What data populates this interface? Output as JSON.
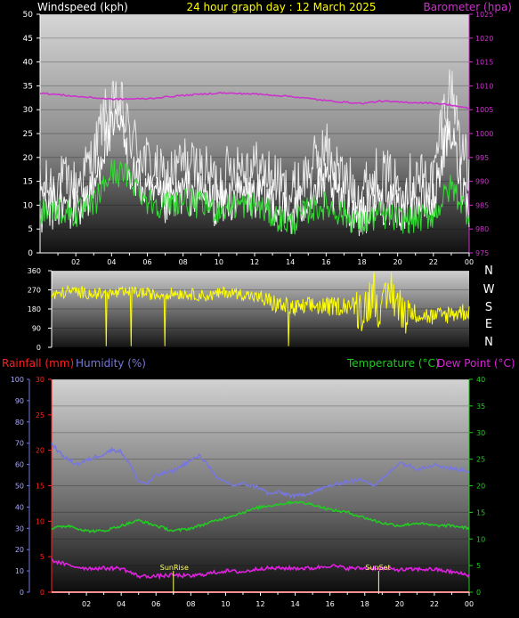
{
  "colors": {
    "wind_speed": "#ffffff",
    "wind_avg": "#33dd33",
    "barometer": "#cc33cc",
    "wind_dir": "#ffff00",
    "humidity": "#7777dd",
    "temperature": "#22cc22",
    "dew_point": "#dd22dd",
    "rainfall": "#ff2222",
    "title": "#ffff00",
    "sun_marker": "#ffff66",
    "axis_text": "#ffffff"
  },
  "header": {
    "left": "Windspeed (kph)",
    "center": "24 hour graph day : 12 March 2025",
    "right": "Barometer (hpa)"
  },
  "bottom_header": {
    "rainfall": "Rainfall (mm)",
    "humidity": "Humidity (%)",
    "temperature": "Temperature (°C)",
    "dew_point": "Dew Point (°C)"
  },
  "compass": [
    "N",
    "W",
    "S",
    "E",
    "N"
  ],
  "markers": {
    "sunrise": "SunRise",
    "sunset": "SunSet"
  },
  "chart_data": [
    {
      "type": "line",
      "title": "24 hour graph day : 12 March 2025",
      "x_tick_labels": [
        "02",
        "04",
        "06",
        "08",
        "10",
        "12",
        "14",
        "16",
        "18",
        "20",
        "22",
        "00"
      ],
      "y_left": {
        "label": "Windspeed (kph)",
        "range": [
          0,
          50
        ],
        "ticks": [
          0,
          5,
          10,
          15,
          20,
          25,
          30,
          35,
          40,
          45,
          50
        ]
      },
      "y_right": {
        "label": "Barometer (hpa)",
        "range": [
          975,
          1025
        ],
        "ticks": [
          975,
          980,
          985,
          990,
          995,
          1000,
          1005,
          1010,
          1015,
          1020,
          1025
        ]
      },
      "series": [
        {
          "name": "Windspeed",
          "axis": "left",
          "hours": [
            0,
            1,
            2,
            3,
            3.5,
            4,
            4.5,
            5,
            6,
            7,
            8,
            9,
            10,
            11,
            12,
            13,
            14,
            15,
            16,
            17,
            18,
            19,
            20,
            21,
            22,
            22.5,
            23,
            23.5,
            24
          ],
          "values": [
            8,
            10,
            9,
            13,
            22,
            25,
            27,
            18,
            12,
            10,
            13,
            12,
            10,
            12,
            12,
            11,
            7,
            12,
            14,
            10,
            8,
            11,
            9,
            11,
            10,
            21,
            25,
            16,
            10
          ]
        },
        {
          "name": "Wind gust",
          "axis": "left",
          "hours": [
            0,
            1,
            2,
            3,
            3.5,
            4,
            4.5,
            5,
            6,
            7,
            8,
            9,
            10,
            11,
            12,
            13,
            14,
            15,
            16,
            17,
            18,
            19,
            20,
            21,
            22,
            22.5,
            23,
            23.5,
            24
          ],
          "values": [
            13,
            15,
            14,
            20,
            28,
            30,
            31,
            25,
            19,
            15,
            19,
            17,
            15,
            19,
            18,
            16,
            12,
            17,
            22,
            15,
            13,
            17,
            14,
            16,
            15,
            29,
            35,
            25,
            15
          ]
        },
        {
          "name": "Wind average",
          "axis": "left",
          "hours": [
            0,
            1,
            2,
            3,
            4,
            5,
            6,
            7,
            8,
            9,
            10,
            11,
            12,
            13,
            14,
            15,
            16,
            17,
            18,
            19,
            20,
            21,
            22,
            23,
            24
          ],
          "values": [
            9,
            9,
            8,
            10,
            17,
            16,
            11,
            10,
            11,
            10,
            9,
            10,
            10,
            8,
            6,
            9,
            10,
            8,
            6,
            8,
            7,
            7,
            8,
            14,
            8
          ]
        },
        {
          "name": "Barometer",
          "axis": "right",
          "hours": [
            0,
            2,
            4,
            6,
            8,
            10,
            12,
            14,
            16,
            18,
            19,
            20,
            22,
            23,
            24
          ],
          "values": [
            1008.5,
            1007.8,
            1007.2,
            1007.3,
            1008.0,
            1008.5,
            1008.3,
            1007.8,
            1006.9,
            1006.3,
            1006.8,
            1006.6,
            1006.4,
            1006.0,
            1005.2
          ]
        }
      ]
    },
    {
      "type": "line",
      "title": "",
      "x_tick_labels": [],
      "y": {
        "label": "",
        "range": [
          0,
          360
        ],
        "ticks": [
          0,
          90,
          180,
          270,
          360
        ]
      },
      "series": [
        {
          "name": "Wind direction",
          "hours": [
            0,
            1,
            2,
            3,
            4,
            5,
            6,
            7,
            8,
            9,
            10,
            11,
            12,
            13,
            14,
            15,
            16,
            17,
            18,
            18.5,
            19,
            19.5,
            20,
            21,
            22,
            23,
            24
          ],
          "values": [
            240,
            265,
            255,
            250,
            255,
            260,
            245,
            255,
            250,
            240,
            260,
            250,
            230,
            200,
            180,
            195,
            190,
            200,
            180,
            270,
            150,
            280,
            180,
            160,
            140,
            160,
            170
          ]
        }
      ]
    },
    {
      "type": "line",
      "title": "",
      "x_tick_labels": [
        "02",
        "04",
        "06",
        "08",
        "10",
        "12",
        "14",
        "16",
        "18",
        "20",
        "22",
        "00"
      ],
      "y_left_outer": {
        "label": "Humidity (%)",
        "range": [
          0,
          100
        ],
        "ticks": [
          0,
          10,
          20,
          30,
          40,
          50,
          60,
          70,
          80,
          90,
          100
        ]
      },
      "y_left_inner": {
        "label": "Rainfall (mm)",
        "range": [
          0,
          30
        ],
        "ticks": [
          0,
          5,
          10,
          15,
          20,
          25,
          30
        ]
      },
      "y_right": {
        "label": "Temperature (°C)",
        "range": [
          0,
          40
        ],
        "ticks": [
          0,
          5,
          10,
          15,
          20,
          25,
          30,
          35,
          40
        ]
      },
      "series": [
        {
          "name": "Humidity",
          "axis": "left_outer",
          "hours": [
            0,
            0.5,
            1,
            1.5,
            2,
            3,
            3.5,
            4,
            4.5,
            5,
            5.5,
            6,
            7,
            8,
            8.5,
            9,
            9.5,
            10,
            10.5,
            11,
            12,
            12.5,
            13,
            14,
            15,
            16,
            17,
            18,
            18.5,
            19,
            20,
            21,
            22,
            23,
            24
          ],
          "values": [
            70,
            65,
            62,
            60,
            62,
            65,
            67,
            66,
            60,
            52,
            51,
            55,
            57,
            62,
            64,
            60,
            53,
            52,
            50,
            51,
            49,
            46,
            47,
            45,
            47,
            50,
            52,
            53,
            50,
            53,
            61,
            58,
            60,
            58,
            57
          ]
        },
        {
          "name": "Temperature",
          "axis": "right",
          "hours": [
            0,
            1,
            2,
            3,
            4,
            5,
            6,
            7,
            8,
            9,
            10,
            11,
            12,
            13,
            14,
            15,
            16,
            17,
            18,
            19,
            20,
            21,
            22,
            23,
            24
          ],
          "values": [
            12,
            12.5,
            11.5,
            11.5,
            12.5,
            13.5,
            12.5,
            11.5,
            12,
            13,
            14,
            15,
            16,
            16.5,
            17,
            16.5,
            15.5,
            15,
            14,
            13,
            12.5,
            13,
            12.5,
            12.5,
            12
          ]
        },
        {
          "name": "Dew Point",
          "axis": "right",
          "hours": [
            0,
            1,
            2,
            3,
            4,
            5,
            6,
            7,
            8,
            9,
            10,
            11,
            12,
            13,
            14,
            15,
            16,
            17,
            18,
            19,
            20,
            21,
            22,
            23,
            24
          ],
          "values": [
            6,
            5,
            4.5,
            4.5,
            4.5,
            3,
            3,
            3.2,
            3,
            3.5,
            4,
            3.8,
            4.5,
            4.5,
            4.5,
            4.5,
            5,
            4.5,
            4.5,
            4.5,
            4.2,
            4.3,
            4.3,
            3.8,
            3.2
          ]
        },
        {
          "name": "Rainfall",
          "axis": "left_inner",
          "hours": [
            0,
            24
          ],
          "values": [
            0,
            0
          ]
        }
      ],
      "annotations": [
        {
          "text": "SunRise",
          "hour": 7.0
        },
        {
          "text": "SunSet",
          "hour": 18.8
        }
      ]
    }
  ]
}
